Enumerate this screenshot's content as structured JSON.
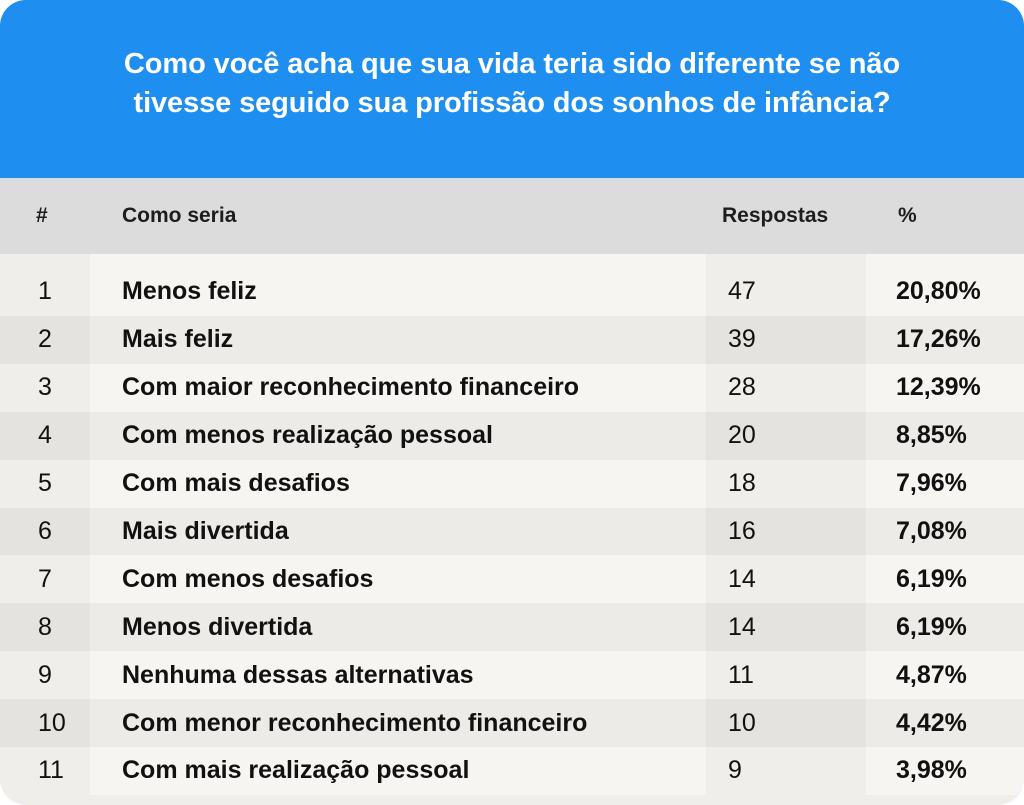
{
  "chart_data": {
    "type": "table",
    "title": "Como você acha que sua vida teria sido diferente se não tivesse seguido sua profissão dos sonhos de infância?",
    "columns": [
      "#",
      "Como seria",
      "Respostas",
      "%"
    ],
    "rows": [
      {
        "num": "1",
        "label": "Menos feliz",
        "responses": "47",
        "percent": "20,80%"
      },
      {
        "num": "2",
        "label": "Mais feliz",
        "responses": "39",
        "percent": "17,26%"
      },
      {
        "num": "3",
        "label": "Com maior reconhecimento financeiro",
        "responses": "28",
        "percent": "12,39%"
      },
      {
        "num": "4",
        "label": "Com menos realização pessoal",
        "responses": "20",
        "percent": "8,85%"
      },
      {
        "num": "5",
        "label": "Com mais desafios",
        "responses": "18",
        "percent": "7,96%"
      },
      {
        "num": "6",
        "label": "Mais divertida",
        "responses": "16",
        "percent": "7,08%"
      },
      {
        "num": "7",
        "label": "Com menos desafios",
        "responses": "14",
        "percent": "6,19%"
      },
      {
        "num": "8",
        "label": "Menos divertida",
        "responses": "14",
        "percent": "6,19%"
      },
      {
        "num": "9",
        "label": "Nenhuma dessas alternativas",
        "responses": "11",
        "percent": "4,87%"
      },
      {
        "num": "10",
        "label": "Com menor reconhecimento financeiro",
        "responses": "10",
        "percent": "4,42%"
      },
      {
        "num": "11",
        "label": "Com mais realização pessoal",
        "responses": "9",
        "percent": "3,98%"
      }
    ]
  },
  "colors": {
    "header_background": "#1e8ff0",
    "header_text": "#ffffff",
    "column_header_background": "#dcdcdc"
  }
}
